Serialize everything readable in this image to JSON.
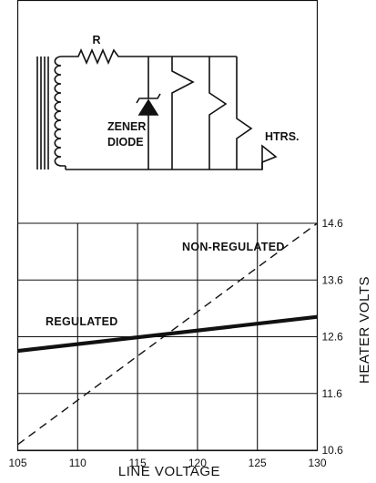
{
  "schematic": {
    "labels": {
      "resistor": "R",
      "zener_line1": "ZENER",
      "zener_line2": "DIODE",
      "heaters": "HTRS."
    }
  },
  "chart_data": {
    "type": "line",
    "title": "",
    "xlabel": "LINE VOLTAGE",
    "ylabel": "HEATER VOLTS",
    "xlim": [
      105,
      130
    ],
    "ylim": [
      10.6,
      14.6
    ],
    "x_ticks": [
      105,
      110,
      115,
      120,
      125,
      130
    ],
    "x_tick_labels": [
      "105",
      "110",
      "115",
      "120",
      "125",
      "130"
    ],
    "y_ticks": [
      10.6,
      11.6,
      12.6,
      13.6,
      14.6
    ],
    "y_tick_labels": [
      "10.6",
      "11.6",
      "12.6",
      "13.6",
      "14.6"
    ],
    "y_axis_side": "right",
    "grid": true,
    "series": [
      {
        "name": "REGULATED",
        "style": "solid-thick",
        "x": [
          105,
          130
        ],
        "y": [
          12.35,
          12.95
        ]
      },
      {
        "name": "NON-REGULATED",
        "style": "dashed",
        "x": [
          105,
          130
        ],
        "y": [
          10.7,
          14.6
        ]
      }
    ]
  }
}
